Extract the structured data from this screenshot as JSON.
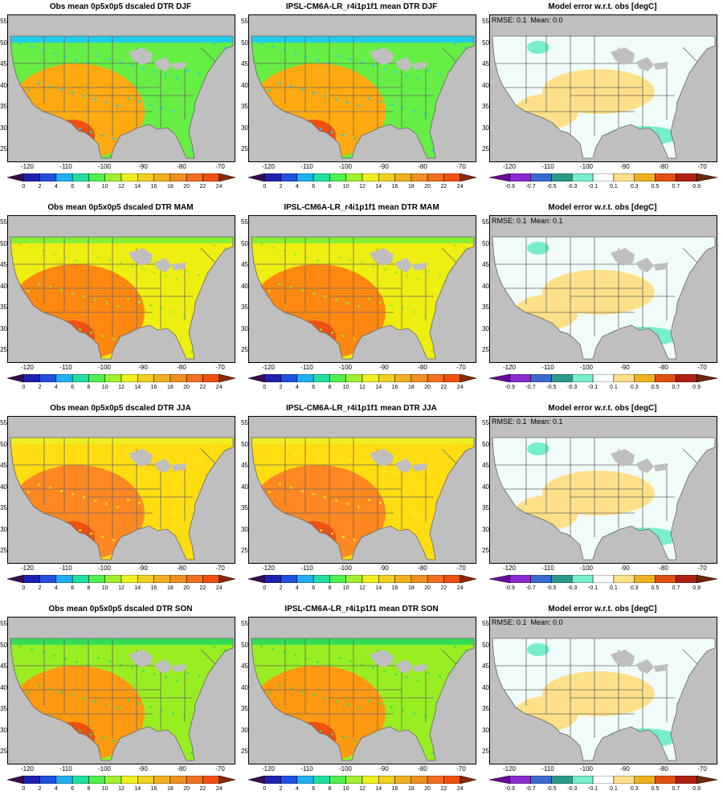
{
  "seasons": [
    {
      "id": "djf",
      "obs_title": "Obs mean 0p5x0p5 dscaled DTR DJF",
      "model_title": "IPSL-CM6A-LR_r4i1p1f1 mean DTR DJF",
      "error_title": "Model error w.r.t. obs [degC]",
      "rmse_text": "RMSE: 0.1",
      "mean_text": "Mean: 0.0",
      "base_color": "#66ee44",
      "south_color": "#ffaa11",
      "north_color": "#22ccee",
      "err_pos_color": "#ffe088",
      "err_neg_color": "#77eecc"
    },
    {
      "id": "mam",
      "obs_title": "Obs mean 0p5x0p5 dscaled DTR MAM",
      "model_title": "IPSL-CM6A-LR_r4i1p1f1 mean DTR MAM",
      "error_title": "Model error w.r.t. obs [degC]",
      "rmse_text": "RMSE: 0.1",
      "mean_text": "Mean: 0.1",
      "base_color": "#eeee11",
      "south_color": "#ff8811",
      "north_color": "#88ee33",
      "err_pos_color": "#ffe088",
      "err_neg_color": "#77eecc"
    },
    {
      "id": "jja",
      "obs_title": "Obs mean 0p5x0p5 dscaled DTR JJA",
      "model_title": "IPSL-CM6A-LR_r4i1p1f1 mean DTR JJA",
      "error_title": "Model error w.r.t. obs [degC]",
      "rmse_text": "RMSE: 0.1",
      "mean_text": "Mean: 0.1",
      "base_color": "#ffdd11",
      "south_color": "#ff8822",
      "north_color": "#eeee22",
      "err_pos_color": "#ffe088",
      "err_neg_color": "#77eecc"
    },
    {
      "id": "son",
      "obs_title": "Obs mean 0p5x0p5 dscaled DTR SON",
      "model_title": "IPSL-CM6A-LR_r4i1p1f1 mean DTR SON",
      "error_title": "Model error w.r.t. obs [degC]",
      "rmse_text": "RMSE: 0.1",
      "mean_text": "Mean: 0.0",
      "base_color": "#99ee22",
      "south_color": "#ff9911",
      "north_color": "#33dd55",
      "err_pos_color": "#ffe088",
      "err_neg_color": "#77eecc"
    }
  ],
  "lat_ticks": [
    "55",
    "50",
    "45",
    "40",
    "35",
    "30",
    "25"
  ],
  "lon_ticks": [
    "-120",
    "-110",
    "-100",
    "-90",
    "-80",
    "-70"
  ],
  "dtr_colorbar": {
    "labels": [
      "0",
      "2",
      "4",
      "6",
      "8",
      "10",
      "12",
      "14",
      "16",
      "18",
      "20",
      "22",
      "24"
    ],
    "colors": [
      "#3a0a50",
      "#2020b0",
      "#2050e0",
      "#20b0f0",
      "#20e0a0",
      "#50f050",
      "#a0f030",
      "#f0f020",
      "#f0d020",
      "#f0b020",
      "#f09020",
      "#f07020",
      "#f05010",
      "#8a2a0a"
    ]
  },
  "error_colorbar": {
    "labels": [
      "-0.9",
      "-0.7",
      "-0.5",
      "-0.3",
      "-0.1",
      "0.1",
      "0.3",
      "0.5",
      "0.7",
      "0.9"
    ],
    "colors": [
      "#6a0a9a",
      "#8a2ad0",
      "#3a6ad0",
      "#2a9a8a",
      "#77eecc",
      "#ffffff",
      "#ffe088",
      "#f0b020",
      "#e05010",
      "#b02010",
      "#6a2a0a"
    ]
  },
  "colors": {
    "land_mask": "#bfbfbf",
    "border": "#666666",
    "error_base": "#f0fcfa"
  }
}
